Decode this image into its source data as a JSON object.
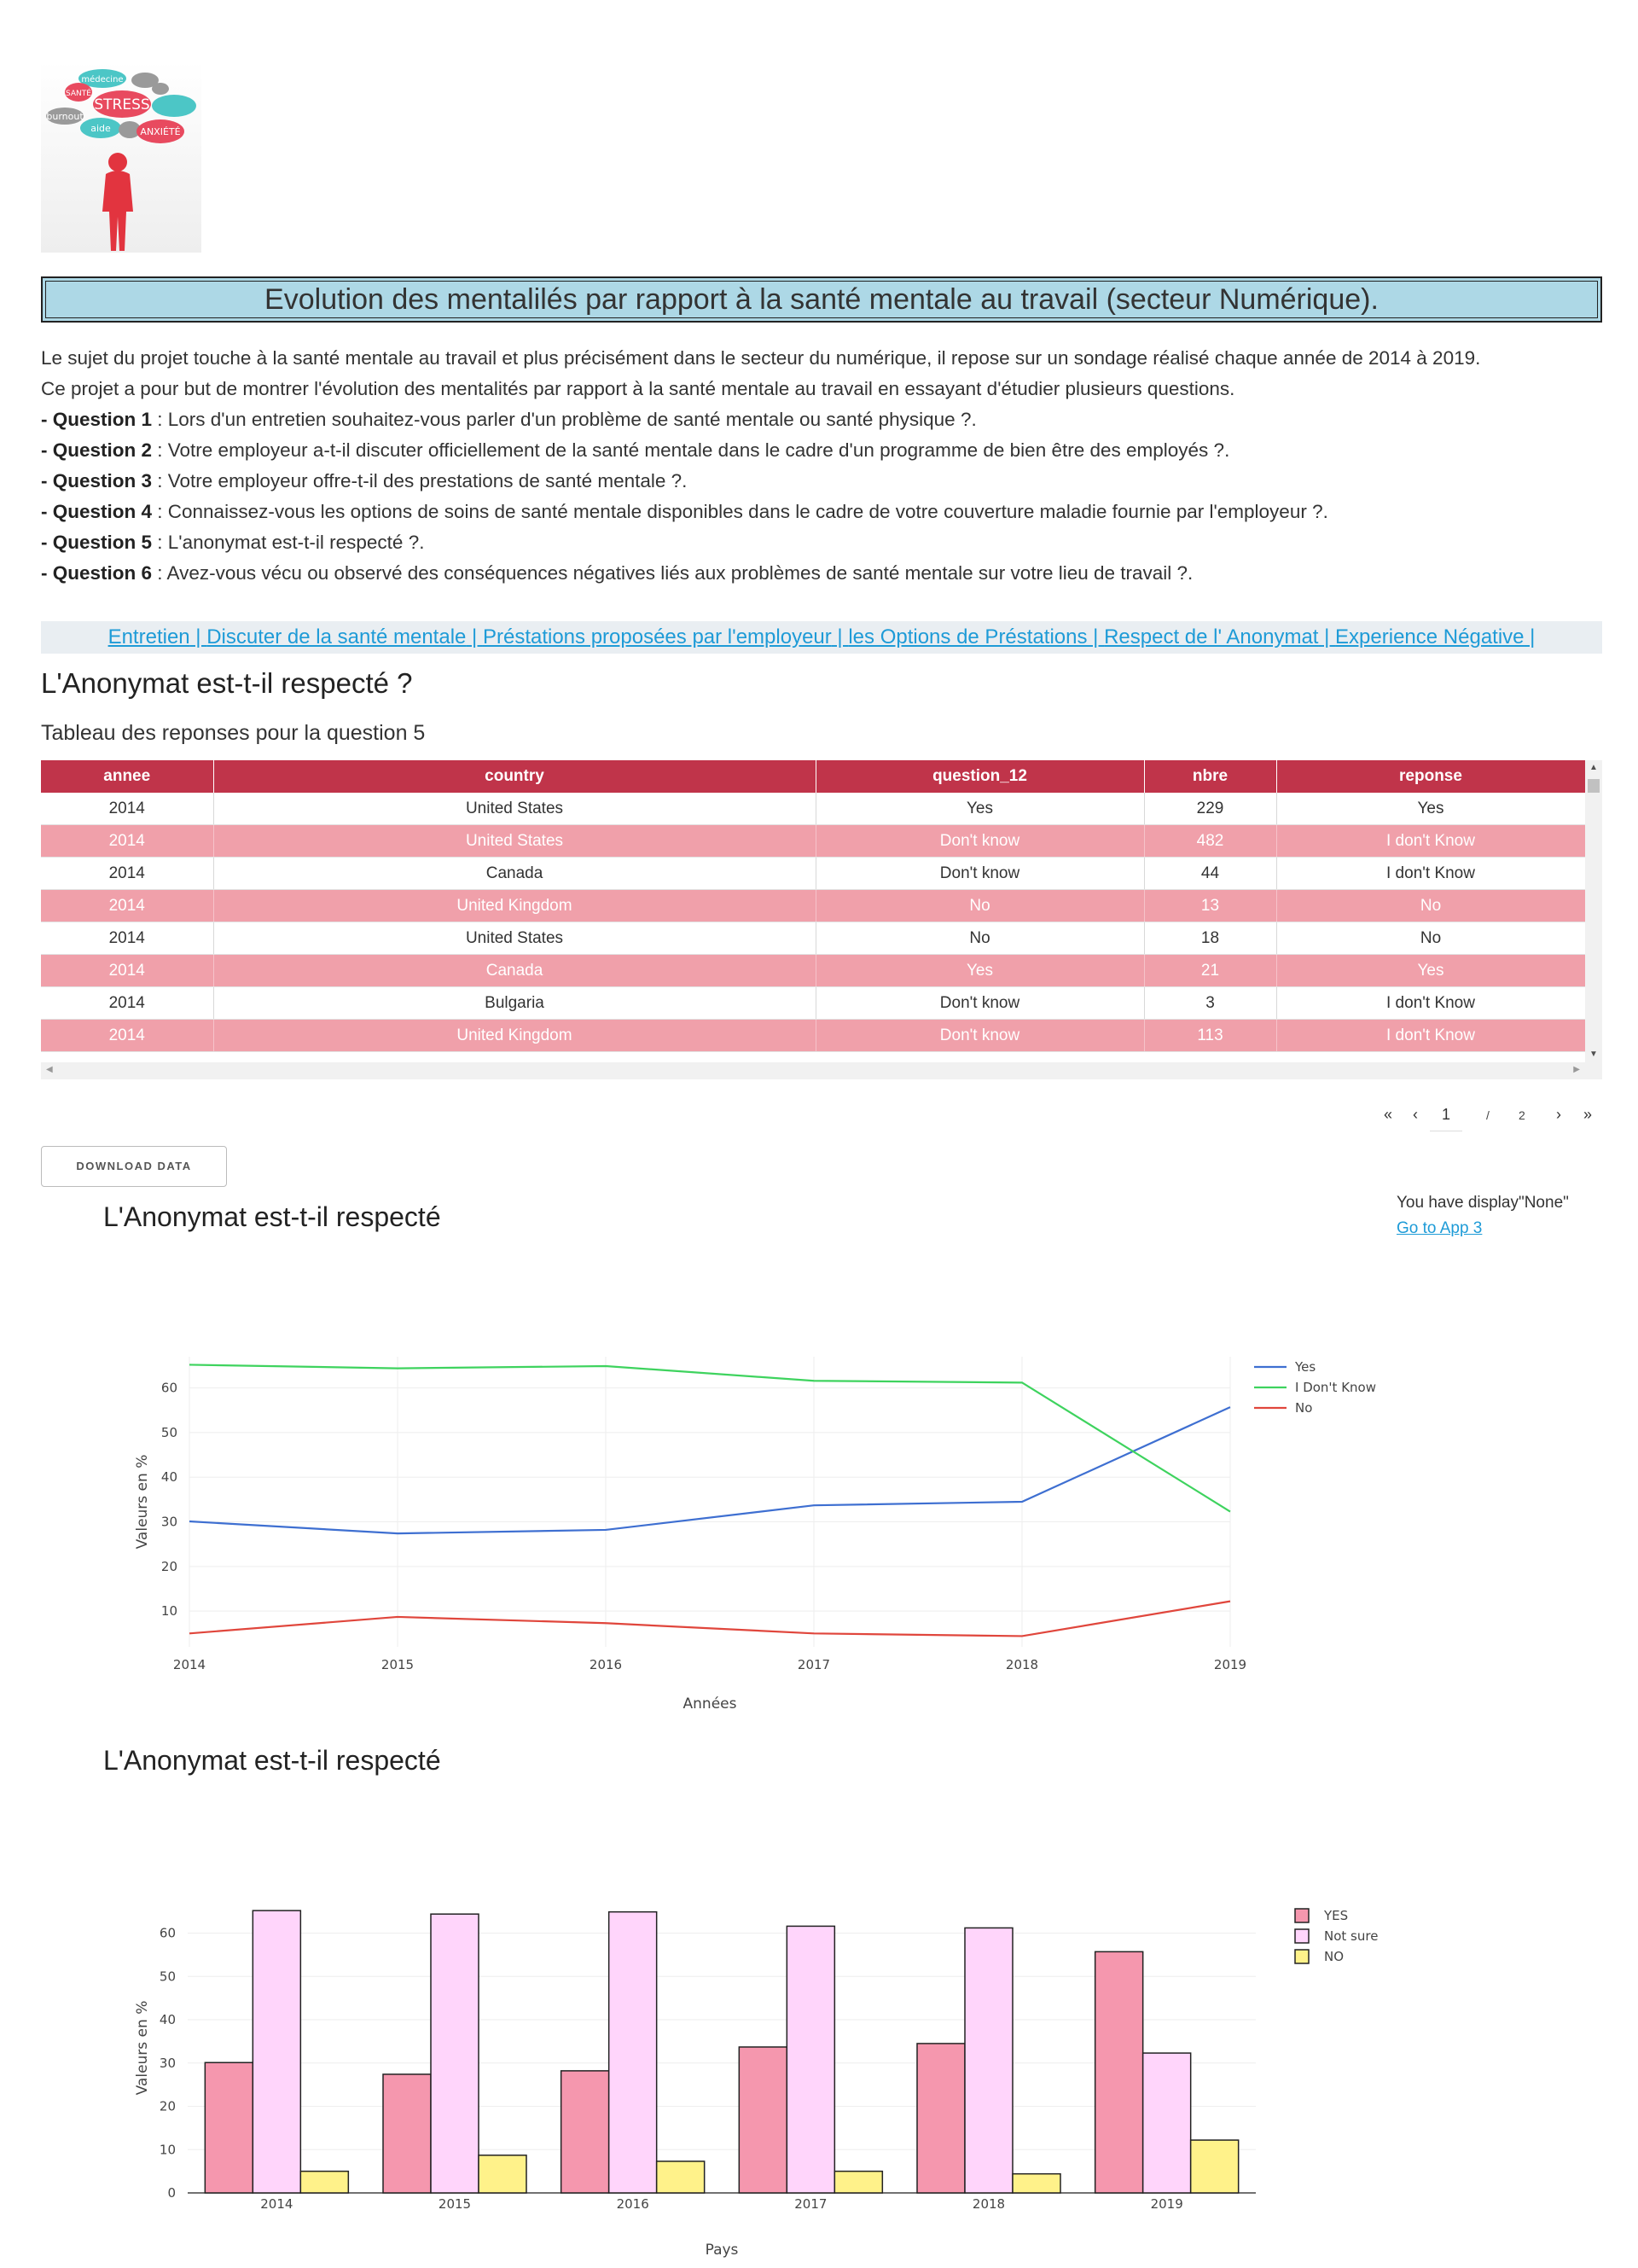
{
  "logo": {
    "alt": "stress word cloud illustration",
    "words": [
      "médecine",
      "SANTÉ",
      "STRESS",
      "burnout",
      "aide",
      "ANXIÉTÉ"
    ]
  },
  "header": {
    "title": "Evolution des mentalilés par rapport à la santé mentale au travail (secteur Numérique)."
  },
  "intro": {
    "line1": "Le sujet du projet touche à la santé mentale au travail et plus précisément dans le secteur du numérique, il repose sur un sondage réalisé chaque année de 2014 à 2019.",
    "line2": "Ce projet a pour but de montrer l'évolution des mentalités par rapport à la santé mentale au travail en essayant d'étudier plusieurs questions.",
    "questions": [
      {
        "label": "- Question 1",
        "text": " : Lors d'un entretien souhaitez-vous parler d'un problème de santé mentale ou santé physique ?."
      },
      {
        "label": "- Question 2",
        "text": " : Votre employeur a-t-il discuter officiellement de la santé mentale dans le cadre d'un programme de bien être des employés ?."
      },
      {
        "label": "- Question 3",
        "text": " : Votre employeur offre-t-il des prestations de santé mentale ?."
      },
      {
        "label": "- Question 4",
        "text": " : Connaissez-vous les options de soins de santé mentale disponibles dans le cadre de votre couverture maladie fournie par l'employeur ?."
      },
      {
        "label": "- Question 5",
        "text": " : L'anonymat est-t-il respecté ?."
      },
      {
        "label": "- Question 6",
        "text": " : Avez-vous vécu ou observé des conséquences négatives liés aux problèmes de santé mentale sur votre lieu de travail ?."
      }
    ]
  },
  "nav": {
    "links": [
      "Entretien",
      "Discuter de la santé mentale",
      "Préstations proposées par l'employeur",
      "les Options de Préstations",
      "Respect de l' Anonymat",
      "Experience Négative"
    ],
    "separator": " | "
  },
  "section": {
    "title": "L'Anonymat est-t-il respecté ?",
    "table_caption": "Tableau des reponses pour la question 5"
  },
  "table": {
    "columns": [
      "annee",
      "country",
      "question_12",
      "nbre",
      "reponse"
    ],
    "rows": [
      [
        "2014",
        "United States",
        "Yes",
        "229",
        "Yes"
      ],
      [
        "2014",
        "United States",
        "Don't know",
        "482",
        "I don't Know"
      ],
      [
        "2014",
        "Canada",
        "Don't know",
        "44",
        "I don't Know"
      ],
      [
        "2014",
        "United Kingdom",
        "No",
        "13",
        "No"
      ],
      [
        "2014",
        "United States",
        "No",
        "18",
        "No"
      ],
      [
        "2014",
        "Canada",
        "Yes",
        "21",
        "Yes"
      ],
      [
        "2014",
        "Bulgaria",
        "Don't know",
        "3",
        "I don't Know"
      ],
      [
        "2014",
        "United Kingdom",
        "Don't know",
        "113",
        "I don't Know"
      ]
    ]
  },
  "pagination": {
    "first": "«",
    "prev": "‹",
    "current": "1",
    "sep": "/",
    "total": "2",
    "next": "›",
    "last": "»"
  },
  "download": {
    "label": "DOWNLOAD DATA"
  },
  "notice": {
    "text": "You have display\"None\"",
    "link": "Go to App 3"
  },
  "chart_titles": {
    "line": "L'Anonymat est-t-il respecté",
    "bar": "L'Anonymat est-t-il respecté"
  },
  "chart_data": [
    {
      "type": "line",
      "x": [
        2014,
        2015,
        2016,
        2017,
        2018,
        2019
      ],
      "series": [
        {
          "name": "Yes",
          "color": "#3e6fd1",
          "values": [
            30.1,
            27.4,
            28.2,
            33.7,
            34.5,
            55.7
          ]
        },
        {
          "name": "I Don't Know",
          "color": "#3ed35e",
          "values": [
            65.2,
            64.4,
            64.9,
            61.6,
            61.2,
            32.3
          ]
        },
        {
          "name": "No",
          "color": "#e0463c",
          "values": [
            5.0,
            8.7,
            7.3,
            5.0,
            4.4,
            12.2
          ]
        }
      ],
      "xlabel": "Années",
      "ylabel": "Valeurs en %",
      "yticks": [
        10,
        20,
        30,
        40,
        50,
        60
      ],
      "ylim": [
        2,
        67
      ],
      "grid": true,
      "legend": "top-right"
    },
    {
      "type": "bar",
      "categories": [
        "2014",
        "2015",
        "2016",
        "2017",
        "2018",
        "2019"
      ],
      "series": [
        {
          "name": "YES",
          "color": "#f597ae",
          "values": [
            30.1,
            27.4,
            28.2,
            33.7,
            34.5,
            55.7
          ]
        },
        {
          "name": "Not sure",
          "color": "#ffd5fb",
          "values": [
            65.2,
            64.4,
            64.9,
            61.6,
            61.2,
            32.3
          ]
        },
        {
          "name": "NO",
          "color": "#fff28a",
          "values": [
            5.0,
            8.7,
            7.3,
            5.0,
            4.4,
            12.2
          ]
        }
      ],
      "xlabel": "Pays",
      "ylabel": "Valeurs en %",
      "yticks": [
        0,
        10,
        20,
        30,
        40,
        50,
        60
      ],
      "ylim": [
        0,
        67
      ],
      "grid": true,
      "legend": "top-right"
    }
  ]
}
